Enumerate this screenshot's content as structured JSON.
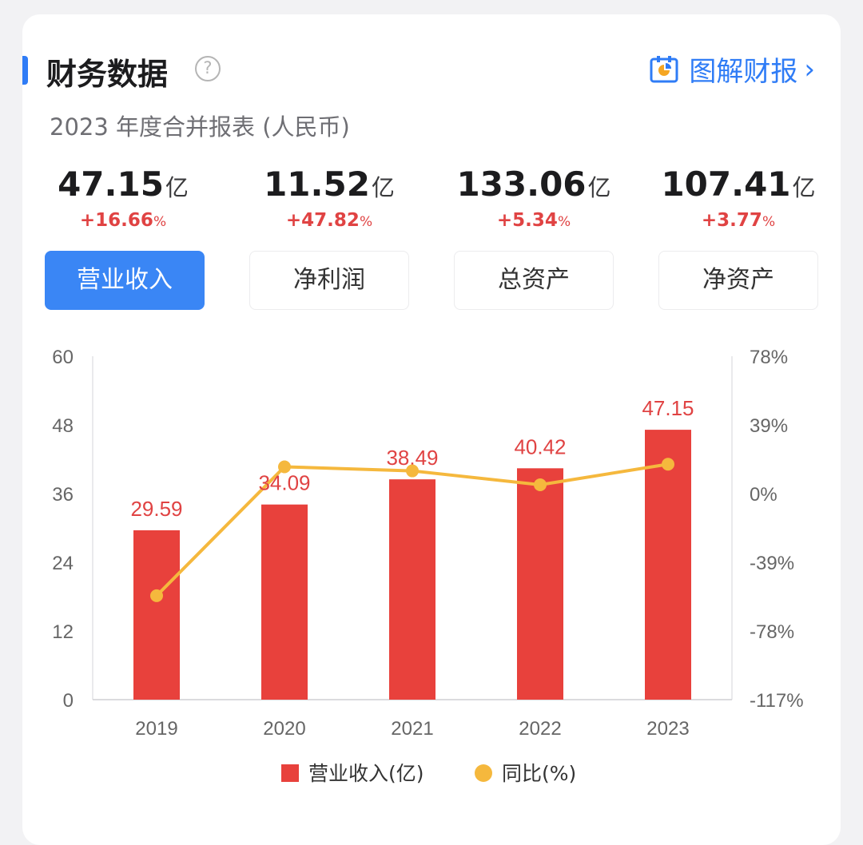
{
  "header": {
    "title": "财务数据",
    "help_icon": "question-circle-icon",
    "report_link": "图解财报",
    "report_icon": "document-chart-icon",
    "chevron_icon": "chevron-right-icon",
    "subtitle": "2023 年度合并报表 (人民币)"
  },
  "metrics": [
    {
      "value": "47.15",
      "unit": "亿",
      "change": "+16.66",
      "pct": "%",
      "tab": "营业收入",
      "active": true
    },
    {
      "value": "11.52",
      "unit": "亿",
      "change": "+47.82",
      "pct": "%",
      "tab": "净利润",
      "active": false
    },
    {
      "value": "133.06",
      "unit": "亿",
      "change": "+5.34",
      "pct": "%",
      "tab": "总资产",
      "active": false
    },
    {
      "value": "107.41",
      "unit": "亿",
      "change": "+3.77",
      "pct": "%",
      "tab": "净资产",
      "active": false
    }
  ],
  "colors": {
    "accent": "#2f7cf6",
    "bar": "#e8413c",
    "line": "#f5b83d",
    "positive": "#e04343"
  },
  "chart_data": {
    "type": "bar",
    "categories": [
      "2019",
      "2020",
      "2021",
      "2022",
      "2023"
    ],
    "series": [
      {
        "name": "营业收入(亿)",
        "type": "bar",
        "axis": "left",
        "values": [
          29.59,
          34.09,
          38.49,
          40.42,
          47.15
        ]
      },
      {
        "name": "同比(%)",
        "type": "line",
        "axis": "right",
        "values": [
          -58,
          15.2,
          12.9,
          5.0,
          16.66
        ]
      }
    ],
    "y_left": {
      "ticks": [
        "0",
        "12",
        "24",
        "36",
        "48",
        "60"
      ],
      "range": [
        0,
        60
      ]
    },
    "y_right": {
      "ticks": [
        "-117%",
        "-78%",
        "-39%",
        "0%",
        "39%",
        "78%"
      ],
      "range": [
        -117,
        78
      ]
    },
    "data_labels": [
      "29.59",
      "34.09",
      "38.49",
      "40.42",
      "47.15"
    ],
    "grid": false,
    "legend_position": "bottom"
  }
}
